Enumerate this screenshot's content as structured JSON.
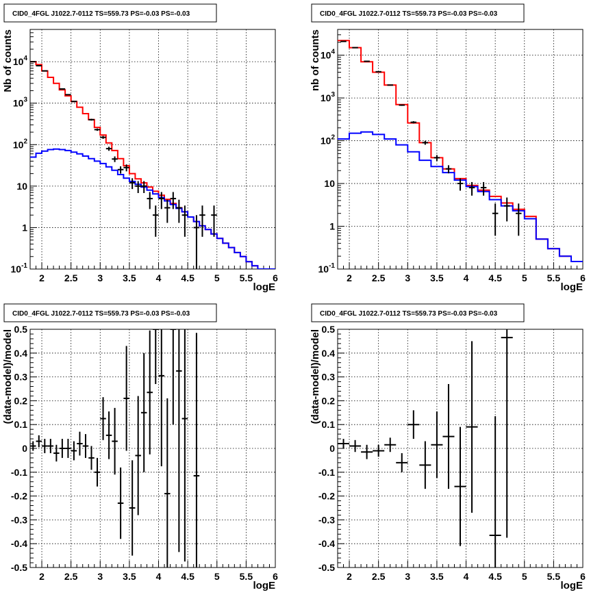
{
  "chart_data": [
    {
      "type": "histogram",
      "title": "CID0_4FGL J1022.7-0112 TS=559.73 PS=-0.03 PS=-0.03",
      "xlabel": "logE",
      "ylabel": "Nb of counts",
      "xlim": [
        1.8,
        6.0
      ],
      "ylim": [
        0.1,
        60000
      ],
      "yscale": "log",
      "grid": true,
      "xticks": [
        2,
        2.5,
        3,
        3.5,
        4,
        4.5,
        5,
        5.5,
        6
      ],
      "xtick_labels": [
        "2",
        "2.5",
        "3",
        "3.5",
        "4",
        "4.5",
        "5",
        "5.5",
        "6"
      ],
      "yticks": [
        0.1,
        1,
        10,
        100,
        1000,
        10000
      ],
      "ytick_labels": [
        "10^-1",
        "1",
        "10",
        "10^2",
        "10^3",
        "10^4"
      ],
      "bin_edges": [
        1.8,
        1.9,
        2.0,
        2.1,
        2.2,
        2.3,
        2.4,
        2.5,
        2.6,
        2.7,
        2.8,
        2.9,
        3.0,
        3.1,
        3.2,
        3.3,
        3.4,
        3.5,
        3.6,
        3.7,
        3.8,
        3.9,
        4.0,
        4.1,
        4.2,
        4.3,
        4.4,
        4.5,
        4.6,
        4.7,
        4.8,
        4.9,
        5.0,
        5.1,
        5.2,
        5.3,
        5.4,
        5.5,
        5.6,
        5.7,
        5.8,
        5.9,
        6.0
      ],
      "series": [
        {
          "kind": "line",
          "color": "#ff0000",
          "values": [
            10000,
            8500,
            6000,
            4200,
            3000,
            2100,
            1500,
            1100,
            800,
            560,
            400,
            260,
            170,
            110,
            72,
            46,
            31,
            20,
            15,
            12,
            9.5,
            7.5,
            6,
            4.8,
            3.8,
            3,
            2.4,
            1.8,
            1.4,
            1.1,
            0.9,
            0.7,
            0.55,
            0.42,
            0.33,
            0.25,
            0.2,
            0.15,
            0.12,
            0.1,
            0.08,
            0.07
          ]
        },
        {
          "kind": "line",
          "color": "#0000ff",
          "values": [
            50,
            62,
            70,
            76,
            78,
            76,
            72,
            66,
            60,
            53,
            46,
            40,
            35,
            29,
            24,
            19,
            15.5,
            13,
            11,
            9.5,
            8,
            6.5,
            5.3,
            4.4,
            3.6,
            2.9,
            2.4,
            1.8,
            1.4,
            1.1,
            0.9,
            0.7,
            0.55,
            0.42,
            0.33,
            0.25,
            0.2,
            0.15,
            0.12,
            0.1,
            0.08,
            0.07
          ]
        },
        {
          "kind": "errorbar",
          "color": "#000000",
          "x": [
            1.85,
            1.95,
            2.05,
            2.35,
            2.45,
            2.55,
            2.85,
            2.95,
            3.05,
            3.15,
            3.25,
            3.35,
            3.45,
            3.55,
            3.65,
            3.75,
            3.85,
            3.95,
            4.05,
            4.15,
            4.25,
            4.35,
            4.45,
            4.65,
            4.75,
            4.95
          ],
          "y": [
            10000,
            8000,
            6000,
            2200,
            1600,
            1100,
            400,
            230,
            150,
            80,
            45,
            25,
            28,
            12,
            10,
            10,
            5,
            2,
            5,
            3,
            5,
            3,
            2,
            1,
            2,
            2
          ],
          "yerr_low": [
            100,
            90,
            80,
            47,
            40,
            33,
            20,
            15,
            12,
            9,
            7,
            5,
            5.3,
            3.5,
            3.2,
            3.2,
            2.2,
            1.4,
            2.2,
            1.7,
            2.2,
            1.7,
            1.4,
            0.9,
            1.4,
            1.4
          ],
          "yerr_high": [
            100,
            90,
            80,
            47,
            40,
            33,
            20,
            15,
            12,
            9,
            7,
            5,
            5.3,
            3.5,
            3.2,
            3.2,
            2.2,
            1.4,
            2.2,
            1.7,
            2.2,
            1.7,
            1.4,
            1.0,
            1.4,
            1.4
          ]
        }
      ]
    },
    {
      "type": "histogram",
      "title": "CID0_4FGL J1022.7-0112 TS=559.73 PS=-0.03 PS=-0.03",
      "xlabel": "logE",
      "ylabel": "nb of counts",
      "xlim": [
        1.8,
        6.0
      ],
      "ylim": [
        0.1,
        40000
      ],
      "yscale": "log",
      "grid": true,
      "xticks": [
        2,
        2.5,
        3,
        3.5,
        4,
        4.5,
        5,
        5.5,
        6
      ],
      "xtick_labels": [
        "2",
        "2.5",
        "3",
        "3.5",
        "4",
        "4.5",
        "5",
        "5.5",
        "6"
      ],
      "yticks": [
        0.1,
        1,
        10,
        100,
        1000,
        10000
      ],
      "ytick_labels": [
        "10^-1",
        "1",
        "10",
        "10^2",
        "10^3",
        "10^4"
      ],
      "bin_edges": [
        1.8,
        2.0,
        2.2,
        2.4,
        2.6,
        2.8,
        3.0,
        3.2,
        3.4,
        3.6,
        3.8,
        4.0,
        4.2,
        4.4,
        4.6,
        4.8,
        5.0,
        5.2,
        5.4,
        5.6,
        5.8,
        6.0
      ],
      "series": [
        {
          "kind": "line",
          "color": "#ff0000",
          "values": [
            22000,
            15000,
            7000,
            4000,
            2000,
            700,
            260,
            90,
            40,
            22,
            13,
            9,
            7,
            5,
            3.5,
            2.5,
            1.7,
            0.5,
            0.3,
            0.2,
            0.15
          ]
        },
        {
          "kind": "line",
          "color": "#0000ff",
          "values": [
            110,
            150,
            160,
            140,
            110,
            80,
            55,
            35,
            25,
            18,
            12,
            8.5,
            6.5,
            4.2,
            3,
            2.3,
            1.5,
            0.5,
            0.3,
            0.2,
            0.15
          ]
        },
        {
          "kind": "errorbar",
          "color": "#000000",
          "x": [
            1.9,
            2.1,
            2.3,
            2.5,
            2.7,
            2.9,
            3.1,
            3.3,
            3.5,
            3.7,
            3.9,
            4.1,
            4.3,
            4.5,
            4.7,
            4.9
          ],
          "y": [
            21000,
            15000,
            7200,
            4100,
            2000,
            680,
            270,
            90,
            40,
            22,
            10,
            8,
            8,
            2,
            3,
            2
          ],
          "yerr_low": [
            145,
            122,
            85,
            64,
            45,
            26,
            16,
            9.5,
            6.3,
            4.7,
            3.2,
            2.8,
            2.8,
            1.4,
            1.7,
            1.4
          ],
          "yerr_high": [
            145,
            122,
            85,
            64,
            45,
            26,
            16,
            9.5,
            6.3,
            4.7,
            3.2,
            2.8,
            2.8,
            1.4,
            1.7,
            1.4
          ]
        }
      ]
    },
    {
      "type": "errorbar",
      "title": "CID0_4FGL J1022.7-0112 TS=559.73 PS=-0.03 PS=-0.03",
      "xlabel": "logE",
      "ylabel": "(data-model)/model",
      "xlim": [
        1.8,
        6.0
      ],
      "ylim": [
        -0.5,
        0.5
      ],
      "grid": true,
      "xticks": [
        2,
        2.5,
        3,
        3.5,
        4,
        4.5,
        5,
        5.5,
        6
      ],
      "xtick_labels": [
        "2",
        "2.5",
        "3",
        "3.5",
        "4",
        "4.5",
        "5",
        "5.5",
        "6"
      ],
      "yticks": [
        -0.5,
        -0.4,
        -0.3,
        -0.2,
        -0.1,
        0,
        0.1,
        0.2,
        0.3,
        0.4,
        0.5
      ],
      "ytick_labels": [
        "-0.5",
        "-0.4",
        "-0.3",
        "-0.2",
        "-0.1",
        "0",
        "0.1",
        "0.2",
        "0.3",
        "0.4",
        "0.5"
      ],
      "series": [
        {
          "color": "#000000",
          "xerr": 0.05,
          "x": [
            1.85,
            1.95,
            2.05,
            2.15,
            2.25,
            2.35,
            2.45,
            2.55,
            2.65,
            2.75,
            2.85,
            2.95,
            3.05,
            3.15,
            3.25,
            3.35,
            3.45,
            3.55,
            3.65,
            3.75,
            3.85,
            3.95,
            4.05,
            4.15,
            4.25,
            4.35,
            4.45,
            4.65
          ],
          "y": [
            0.01,
            0.03,
            0.01,
            0.01,
            -0.02,
            0,
            0,
            -0.01,
            0.02,
            0.01,
            -0.04,
            -0.1,
            0.125,
            0.055,
            0.03,
            -0.23,
            0.21,
            -0.25,
            -0.03,
            0.15,
            0.235,
            0.55,
            0.305,
            -0.19,
            0.55,
            0.325,
            0.125,
            -0.115
          ],
          "yerr": [
            0.02,
            0.025,
            0.03,
            0.03,
            0.035,
            0.04,
            0.04,
            0.04,
            0.05,
            0.05,
            0.05,
            0.06,
            0.09,
            0.1,
            0.14,
            0.15,
            0.22,
            0.2,
            0.25,
            0.25,
            0.26,
            0.28,
            0.38,
            0.4,
            0.45,
            0.76,
            0.6,
            0.6
          ]
        }
      ]
    },
    {
      "type": "errorbar",
      "title": "CID0_4FGL J1022.7-0112 TS=559.73 PS=-0.03 PS=-0.03",
      "xlabel": "logE",
      "ylabel": "(data-model)/model",
      "xlim": [
        1.8,
        6.0
      ],
      "ylim": [
        -0.5,
        0.5
      ],
      "grid": true,
      "xticks": [
        2,
        2.5,
        3,
        3.5,
        4,
        4.5,
        5,
        5.5,
        6
      ],
      "xtick_labels": [
        "2",
        "2.5",
        "3",
        "3.5",
        "4",
        "4.5",
        "5",
        "5.5",
        "6"
      ],
      "yticks": [
        -0.5,
        -0.4,
        -0.3,
        -0.2,
        -0.1,
        0,
        0.1,
        0.2,
        0.3,
        0.4,
        0.5
      ],
      "ytick_labels": [
        "-0.5",
        "-0.4",
        "-0.3",
        "-0.2",
        "-0.1",
        "0",
        "0.1",
        "0.2",
        "0.3",
        "0.4",
        "0.5"
      ],
      "series": [
        {
          "color": "#000000",
          "xerr": 0.1,
          "x": [
            1.9,
            2.1,
            2.3,
            2.5,
            2.7,
            2.9,
            3.1,
            3.3,
            3.5,
            3.7,
            3.9,
            4.1,
            4.5,
            4.7
          ],
          "y": [
            0.02,
            0.01,
            -0.015,
            -0.01,
            0.015,
            -0.06,
            0.1,
            -0.07,
            0.015,
            0.05,
            -0.16,
            0.09,
            -0.365,
            0.465
          ]
        },
        {
          "color": "#000000",
          "xerr": 0,
          "x": [
            1.9,
            2.1,
            2.3,
            2.5,
            2.7,
            2.9,
            3.1,
            3.3,
            3.5,
            3.7,
            3.9,
            4.1,
            4.5,
            4.7
          ],
          "y": [
            0.02,
            0.01,
            -0.015,
            -0.01,
            0.015,
            -0.06,
            0.1,
            -0.07,
            0.015,
            0.05,
            -0.16,
            0.09,
            -0.365,
            0.465
          ],
          "yerr": [
            0.02,
            0.025,
            0.03,
            0.025,
            0.03,
            0.04,
            0.06,
            0.1,
            0.14,
            0.22,
            0.25,
            0.36,
            0.5,
            0.84
          ]
        }
      ]
    }
  ]
}
